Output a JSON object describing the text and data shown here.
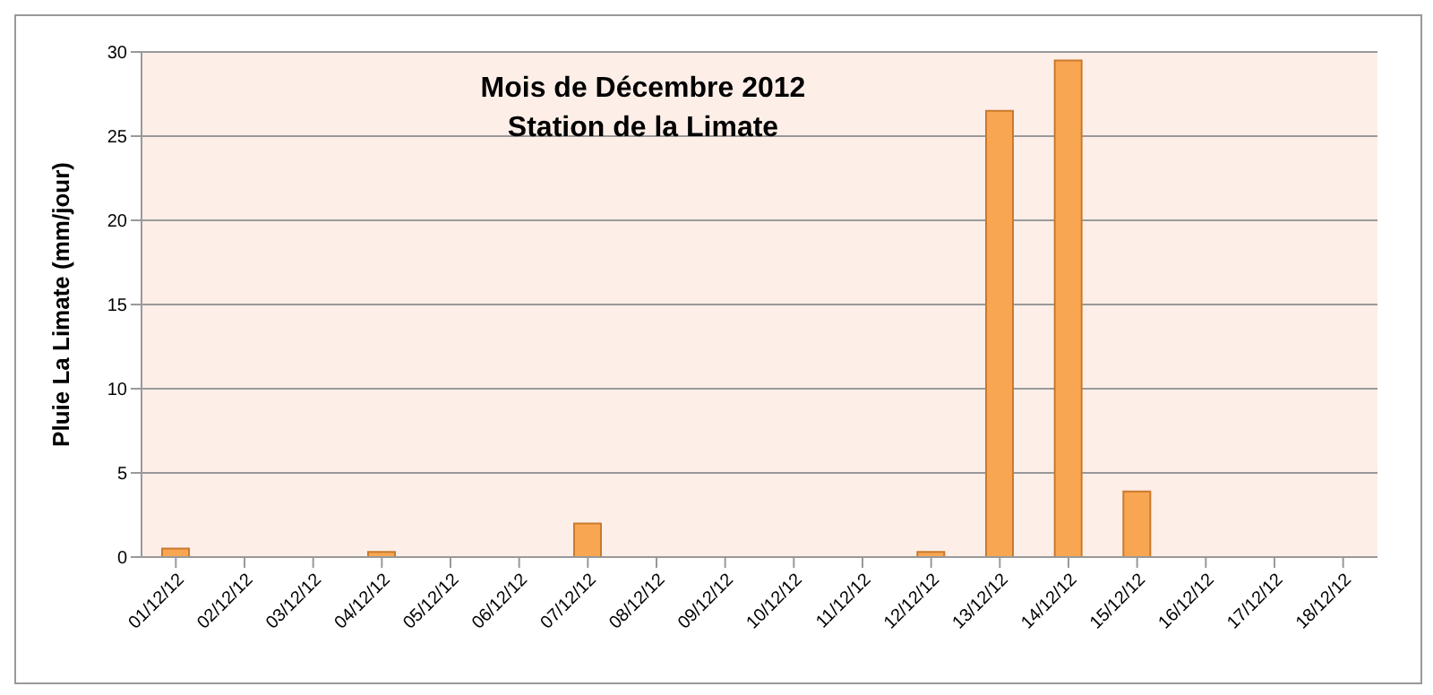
{
  "chart_data": {
    "type": "bar",
    "title": "Mois de Décembre 2012",
    "subtitle": "Station de la Limate",
    "ylabel": "Pluie La Limate (mm/jour)",
    "categories": [
      "01/12/12",
      "02/12/12",
      "03/12/12",
      "04/12/12",
      "05/12/12",
      "06/12/12",
      "07/12/12",
      "08/12/12",
      "09/12/12",
      "10/12/12",
      "11/12/12",
      "12/12/12",
      "13/12/12",
      "14/12/12",
      "15/12/12",
      "16/12/12",
      "17/12/12",
      "18/12/12"
    ],
    "values": [
      0.5,
      0,
      0,
      0.3,
      0,
      0,
      2,
      0,
      0,
      0,
      0,
      0.3,
      26.5,
      29.5,
      3.9,
      0,
      0,
      0
    ],
    "color": "#f9a653",
    "ylim": [
      0,
      30
    ],
    "yticks": [
      0,
      5,
      10,
      15,
      20,
      25,
      30
    ],
    "grid": "y"
  }
}
